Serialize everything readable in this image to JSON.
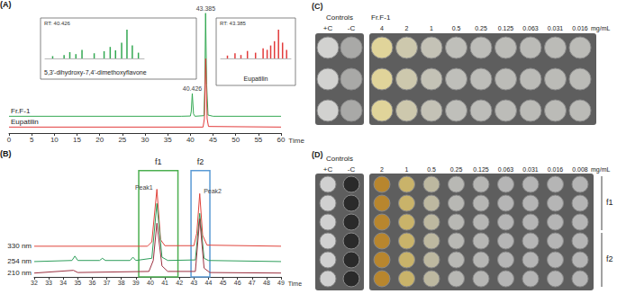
{
  "chart_data": [
    {
      "label": "(A)",
      "type": "line",
      "x_label": "Time",
      "xlim": [
        0,
        60
      ],
      "xticks": [
        0,
        5,
        10,
        15,
        20,
        25,
        30,
        35,
        40,
        45,
        50,
        55,
        60
      ],
      "ylim": [
        0,
        105
      ],
      "tick_labels": "x",
      "grid": false,
      "series": [
        {
          "name": "Fr.F-1",
          "color": "#33a852",
          "x": [
            0,
            38,
            40,
            40.2,
            40.426,
            40.7,
            41,
            43,
            43.2,
            43.36,
            43.6,
            43.9,
            45,
            60
          ],
          "values": [
            14,
            14,
            14.2,
            18,
            33,
            16,
            14,
            14.5,
            40,
            100,
            40,
            15,
            14,
            14
          ]
        },
        {
          "name": "Eupatilin",
          "color": "#e23b3b",
          "x": [
            0,
            42.8,
            43.1,
            43.385,
            43.7,
            44,
            60
          ],
          "values": [
            5,
            5,
            12,
            62,
            12,
            5.5,
            5
          ]
        }
      ],
      "annotations": [
        {
          "text": "40.426",
          "x": 40.426,
          "y": 33
        },
        {
          "text": "43.385",
          "x": 43.385,
          "y": 100
        }
      ],
      "insets": [
        {
          "type": "bar",
          "color": "#33a852",
          "title": "RT: 40.426",
          "caption": "5,3'-dihydroxy-7,4'-dimethoxyflavone",
          "xlim": [
            100,
            360
          ],
          "ylim": [
            0,
            100
          ],
          "tick_labels": false,
          "x": [
            120,
            150,
            165,
            181,
            197,
            229,
            255,
            271,
            285,
            301,
            315,
            329,
            345
          ],
          "values": [
            8,
            12,
            22,
            15,
            30,
            18,
            25,
            40,
            28,
            55,
            100,
            45,
            20
          ]
        },
        {
          "type": "bar",
          "color": "#e23b3b",
          "title": "RT: 43.385",
          "caption": "Eupatilin",
          "xlim": [
            100,
            360
          ],
          "ylim": [
            0,
            100
          ],
          "tick_labels": false,
          "x": [
            125,
            153,
            175,
            199,
            229,
            257,
            272,
            285,
            299,
            314,
            329,
            344
          ],
          "values": [
            10,
            18,
            12,
            26,
            20,
            35,
            30,
            45,
            60,
            100,
            55,
            30
          ]
        }
      ]
    },
    {
      "label": "(B)",
      "type": "line",
      "x_label": "Time",
      "xlim": [
        32,
        49
      ],
      "xticks": [
        32,
        33,
        34,
        35,
        36,
        37,
        38,
        39,
        40,
        41,
        42,
        43,
        44,
        45,
        46,
        47,
        48,
        49
      ],
      "ylim": [
        0,
        105
      ],
      "tick_labels": "x",
      "grid": false,
      "series": [
        {
          "name": "330 nm",
          "color": "#e0443c",
          "x": [
            32,
            39.8,
            40.1,
            40.45,
            40.7,
            41,
            43,
            43.2,
            43.4,
            43.6,
            43.9,
            49
          ],
          "values": [
            28,
            28,
            32,
            80,
            34,
            28.5,
            28.5,
            40,
            76,
            38,
            29,
            28
          ]
        },
        {
          "name": "254 nm",
          "color": "#2e9e5b",
          "x": [
            32,
            34.6,
            34.8,
            35,
            36.5,
            36.7,
            36.9,
            38.6,
            38.8,
            39,
            40.1,
            40.45,
            40.8,
            41.2,
            43.1,
            43.4,
            43.7,
            44,
            49
          ],
          "values": [
            14,
            15,
            19,
            15,
            15,
            17,
            15,
            15,
            18,
            15,
            17,
            67,
            18,
            15,
            15.5,
            58,
            17,
            15,
            14
          ]
        },
        {
          "name": "210 nm",
          "color": "#9b2f3f",
          "x": [
            32,
            34.7,
            35,
            39.9,
            40.2,
            40.45,
            40.8,
            41.2,
            43.1,
            43.4,
            43.7,
            44.1,
            49
          ],
          "values": [
            3.5,
            6,
            4,
            5,
            15,
            49,
            10,
            5,
            5,
            53,
            8,
            4,
            3.5
          ]
        }
      ],
      "regions": [
        {
          "label": "f1",
          "color": "#4caf50",
          "x": [
            39.2,
            41.9
          ],
          "y": [
            0,
            97
          ]
        },
        {
          "label": "f2",
          "color": "#5b9bd5",
          "x": [
            42.8,
            44.1
          ],
          "y": [
            0,
            97
          ]
        }
      ],
      "annotations": [
        {
          "text": "Peak1",
          "x": 40.3,
          "y": 82
        },
        {
          "text": "Peak2",
          "x": 43.55,
          "y": 78
        }
      ]
    }
  ],
  "plates": [
    {
      "label": "(C)",
      "controls_title": "Controls",
      "controls": [
        {
          "label": "+C",
          "color": "#d2d2d0"
        },
        {
          "label": "-C",
          "color": "#a9a9a7"
        }
      ],
      "sample": "Fr.F-1",
      "concentrations": [
        4,
        2,
        1,
        0.5,
        0.25,
        0.125,
        0.063,
        0.031,
        0.016
      ],
      "unit": "mg/mL",
      "rows": 3,
      "colors": [
        "#e0d49a",
        "#cdc8ad",
        "#c4c2b6",
        "#bfbfba",
        "#bdbdb9",
        "#bcbcb8",
        "#bbbbb7",
        "#bbbbb7",
        "#bbbbb7"
      ]
    },
    {
      "label": "(D)",
      "controls_title": "Controls",
      "controls": [
        {
          "label": "+C",
          "color": "#d0d0d0"
        },
        {
          "label": "-C",
          "color": "#2a2a2a"
        }
      ],
      "concentrations": [
        2,
        1,
        0.5,
        0.25,
        0.125,
        0.063,
        0.031,
        0.016,
        0.008
      ],
      "unit": "mg/mL",
      "rows": 6,
      "groups": [
        {
          "label": "f1",
          "rows": 3
        },
        {
          "label": "f2",
          "rows": 3
        }
      ],
      "colors": [
        "#b8862e",
        "#c9b36a",
        "#bdb8a0",
        "#b8b8b4",
        "#b6b6b4",
        "#b5b5b5",
        "#b5b5b5",
        "#b5b5b5",
        "#b5b5b5"
      ]
    }
  ]
}
